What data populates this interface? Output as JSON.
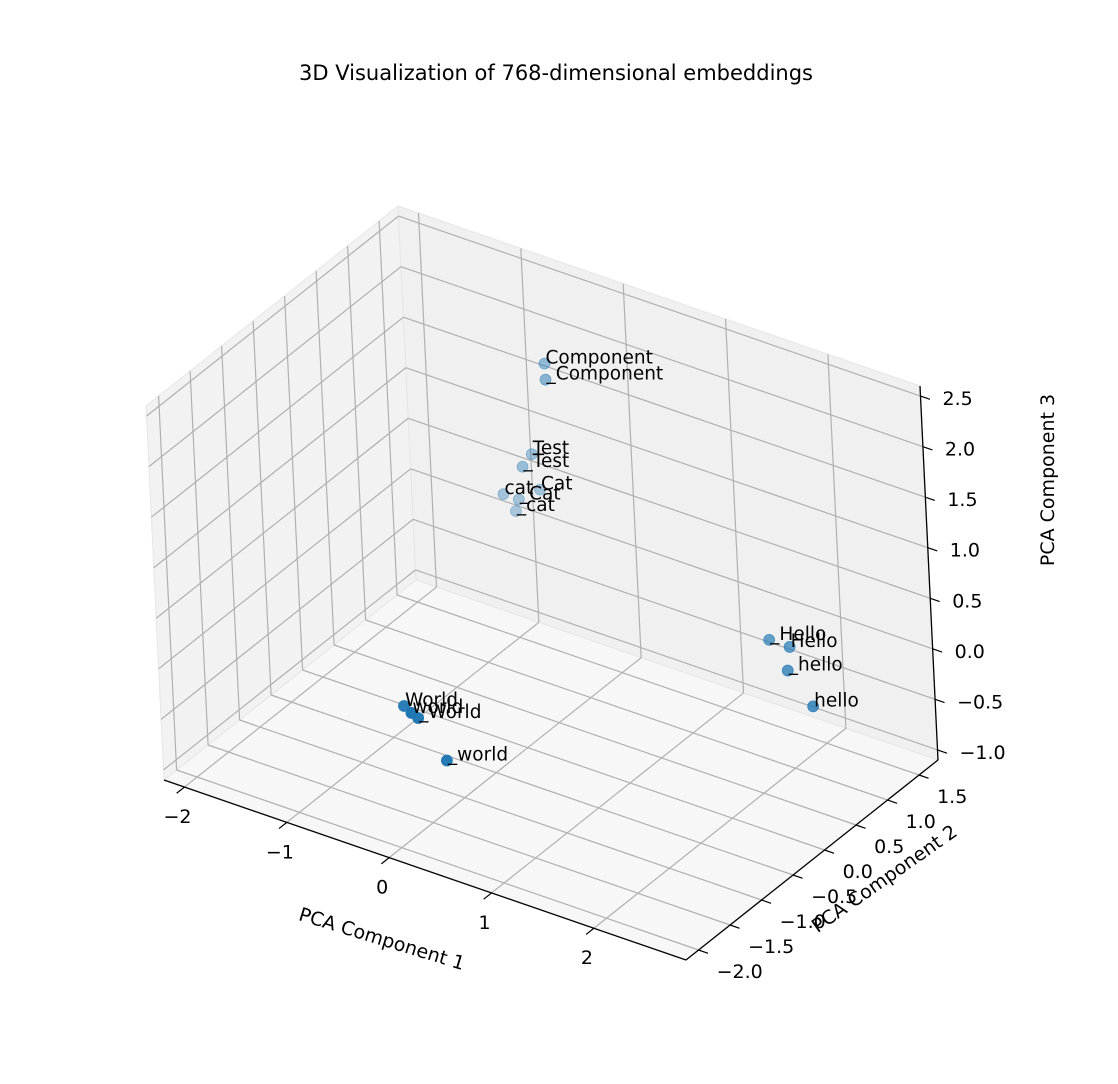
{
  "chart_data": {
    "type": "scatter",
    "projection": "3d",
    "title": "3D Visualization of 768-dimensional embeddings",
    "xlabel": "PCA Component 1",
    "ylabel": "PCA Component 2",
    "zlabel": "PCA Component 3",
    "xlim": [
      -2.2,
      2.9
    ],
    "ylim": [
      -2.2,
      1.8
    ],
    "zlim": [
      -1.1,
      2.6
    ],
    "xticks": [
      -2,
      -1,
      0,
      1,
      2
    ],
    "yticks": [
      -2.0,
      -1.5,
      -1.0,
      -0.5,
      0.0,
      0.5,
      1.0,
      1.5
    ],
    "zticks": [
      -1.0,
      -0.5,
      0.0,
      0.5,
      1.0,
      1.5,
      2.0,
      2.5
    ],
    "xtick_labels": [
      "−2",
      "−1",
      "0",
      "1",
      "2"
    ],
    "ytick_labels": [
      "−2.0",
      "−1.5",
      "−1.0",
      "−0.5",
      "0.0",
      "0.5",
      "1.0",
      "1.5"
    ],
    "ztick_labels": [
      "−1.0",
      "−0.5",
      "0.0",
      "0.5",
      "1.0",
      "1.5",
      "2.0",
      "2.5"
    ],
    "grid": true,
    "color": "#1f77b4",
    "points": [
      {
        "label": "Component",
        "x": -0.3,
        "y": 1.0,
        "z": 2.1
      },
      {
        "label": "_Component",
        "x": -0.2,
        "y": 0.85,
        "z": 2.05
      },
      {
        "label": "Test",
        "x": -0.6,
        "y": 1.2,
        "z": 1.0
      },
      {
        "label": "_Test",
        "x": -0.6,
        "y": 1.05,
        "z": 0.95
      },
      {
        "label": "Cat",
        "x": -0.6,
        "y": 1.3,
        "z": 0.6
      },
      {
        "label": "cat",
        "x": -0.9,
        "y": 1.2,
        "z": 0.5
      },
      {
        "label": "_Cat",
        "x": -0.75,
        "y": 1.2,
        "z": 0.5
      },
      {
        "label": "_cat",
        "x": -0.85,
        "y": 1.3,
        "z": 0.3
      },
      {
        "label": "_Hello",
        "x": 1.8,
        "y": 1.0,
        "z": 0.1
      },
      {
        "label": "Hello",
        "x": 2.0,
        "y": 1.0,
        "z": 0.1
      },
      {
        "label": "_hello",
        "x": 2.1,
        "y": 0.8,
        "z": 0.0
      },
      {
        "label": "hello",
        "x": 2.4,
        "y": 0.7,
        "z": -0.2
      },
      {
        "label": "World",
        "x": -0.3,
        "y": -1.4,
        "z": -0.1
      },
      {
        "label": "world",
        "x": -0.1,
        "y": -1.6,
        "z": 0.0
      },
      {
        "label": "_World",
        "x": -0.1,
        "y": -1.5,
        "z": -0.1
      },
      {
        "label": "_world",
        "x": 0.1,
        "y": -1.4,
        "z": -0.5
      }
    ]
  }
}
